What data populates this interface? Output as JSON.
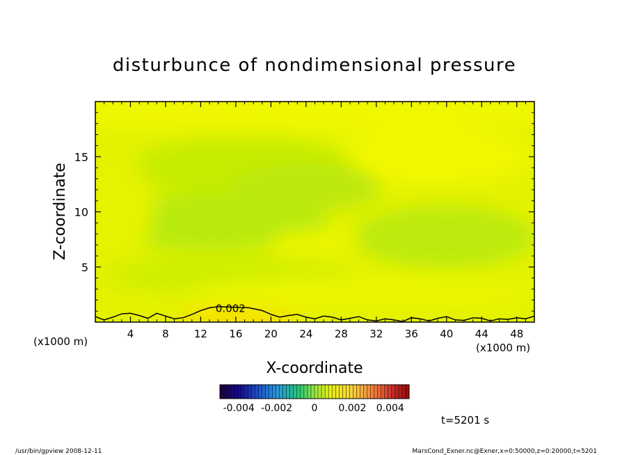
{
  "chart_data": {
    "type": "heatmap",
    "title": "disturbunce of nondimensional pressure",
    "xlabel": "X-coordinate",
    "ylabel": "Z-coordinate",
    "x_unit_left": "(x1000 m)",
    "x_unit_right": "(x1000 m)",
    "xlim": [
      0,
      50
    ],
    "ylim": [
      0,
      20
    ],
    "x_ticks": [
      {
        "value": 4,
        "label": "4"
      },
      {
        "value": 8,
        "label": "8"
      },
      {
        "value": 12,
        "label": "12"
      },
      {
        "value": 16,
        "label": "16"
      },
      {
        "value": 20,
        "label": "20"
      },
      {
        "value": 24,
        "label": "24"
      },
      {
        "value": 28,
        "label": "28"
      },
      {
        "value": 32,
        "label": "32"
      },
      {
        "value": 36,
        "label": "36"
      },
      {
        "value": 40,
        "label": "40"
      },
      {
        "value": 44,
        "label": "44"
      },
      {
        "value": 48,
        "label": "48"
      }
    ],
    "y_ticks": [
      {
        "value": 5,
        "label": "5"
      },
      {
        "value": 10,
        "label": "10"
      },
      {
        "value": 15,
        "label": "15"
      }
    ],
    "contour": {
      "level": 0.002,
      "label": "0.002",
      "points": [
        [
          0,
          0.5
        ],
        [
          1,
          0.2
        ],
        [
          2,
          0.45
        ],
        [
          3,
          0.75
        ],
        [
          4,
          0.8
        ],
        [
          5,
          0.6
        ],
        [
          6,
          0.35
        ],
        [
          7,
          0.8
        ],
        [
          8,
          0.55
        ],
        [
          9,
          0.3
        ],
        [
          10,
          0.4
        ],
        [
          11,
          0.7
        ],
        [
          12,
          1.05
        ],
        [
          13,
          1.3
        ],
        [
          14,
          1.4
        ],
        [
          16,
          1.35
        ],
        [
          17.5,
          1.3
        ],
        [
          19,
          1.05
        ],
        [
          20,
          0.7
        ],
        [
          21,
          0.45
        ],
        [
          22,
          0.6
        ],
        [
          23,
          0.7
        ],
        [
          24,
          0.45
        ],
        [
          25,
          0.3
        ],
        [
          26,
          0.55
        ],
        [
          27,
          0.45
        ],
        [
          28,
          0.2
        ],
        [
          29,
          0.35
        ],
        [
          30,
          0.5
        ],
        [
          31,
          0.2
        ],
        [
          32,
          0.1
        ],
        [
          33,
          0.3
        ],
        [
          34,
          0.2
        ],
        [
          35,
          0.05
        ],
        [
          36,
          0.4
        ],
        [
          37,
          0.3
        ],
        [
          38,
          0.1
        ],
        [
          39,
          0.35
        ],
        [
          40,
          0.5
        ],
        [
          41,
          0.2
        ],
        [
          42,
          0.15
        ],
        [
          43,
          0.4
        ],
        [
          44,
          0.35
        ],
        [
          45,
          0.1
        ],
        [
          46,
          0.3
        ],
        [
          47,
          0.25
        ],
        [
          48,
          0.4
        ],
        [
          49,
          0.3
        ],
        [
          50,
          0.55
        ]
      ]
    },
    "colorbar": {
      "tick_labels": [
        "-0.004",
        "-0.002",
        "0",
        "0.002",
        "0.004"
      ],
      "range": [
        -0.005,
        0.005
      ]
    },
    "field_colors": {
      "bright_yellow": "#f0f800",
      "yellow_green": "#d8f000",
      "green": "#b8ea0a",
      "light_green": "#c8ee05",
      "orange_yellow": "#ffd800"
    }
  },
  "time_label": "t=5201 s",
  "footer": {
    "left": "/usr/bin/gpview   2008-12-11",
    "right": "MarsCond_Exner.nc@Exner,x=0:50000,z=0:20000,t=5201"
  }
}
